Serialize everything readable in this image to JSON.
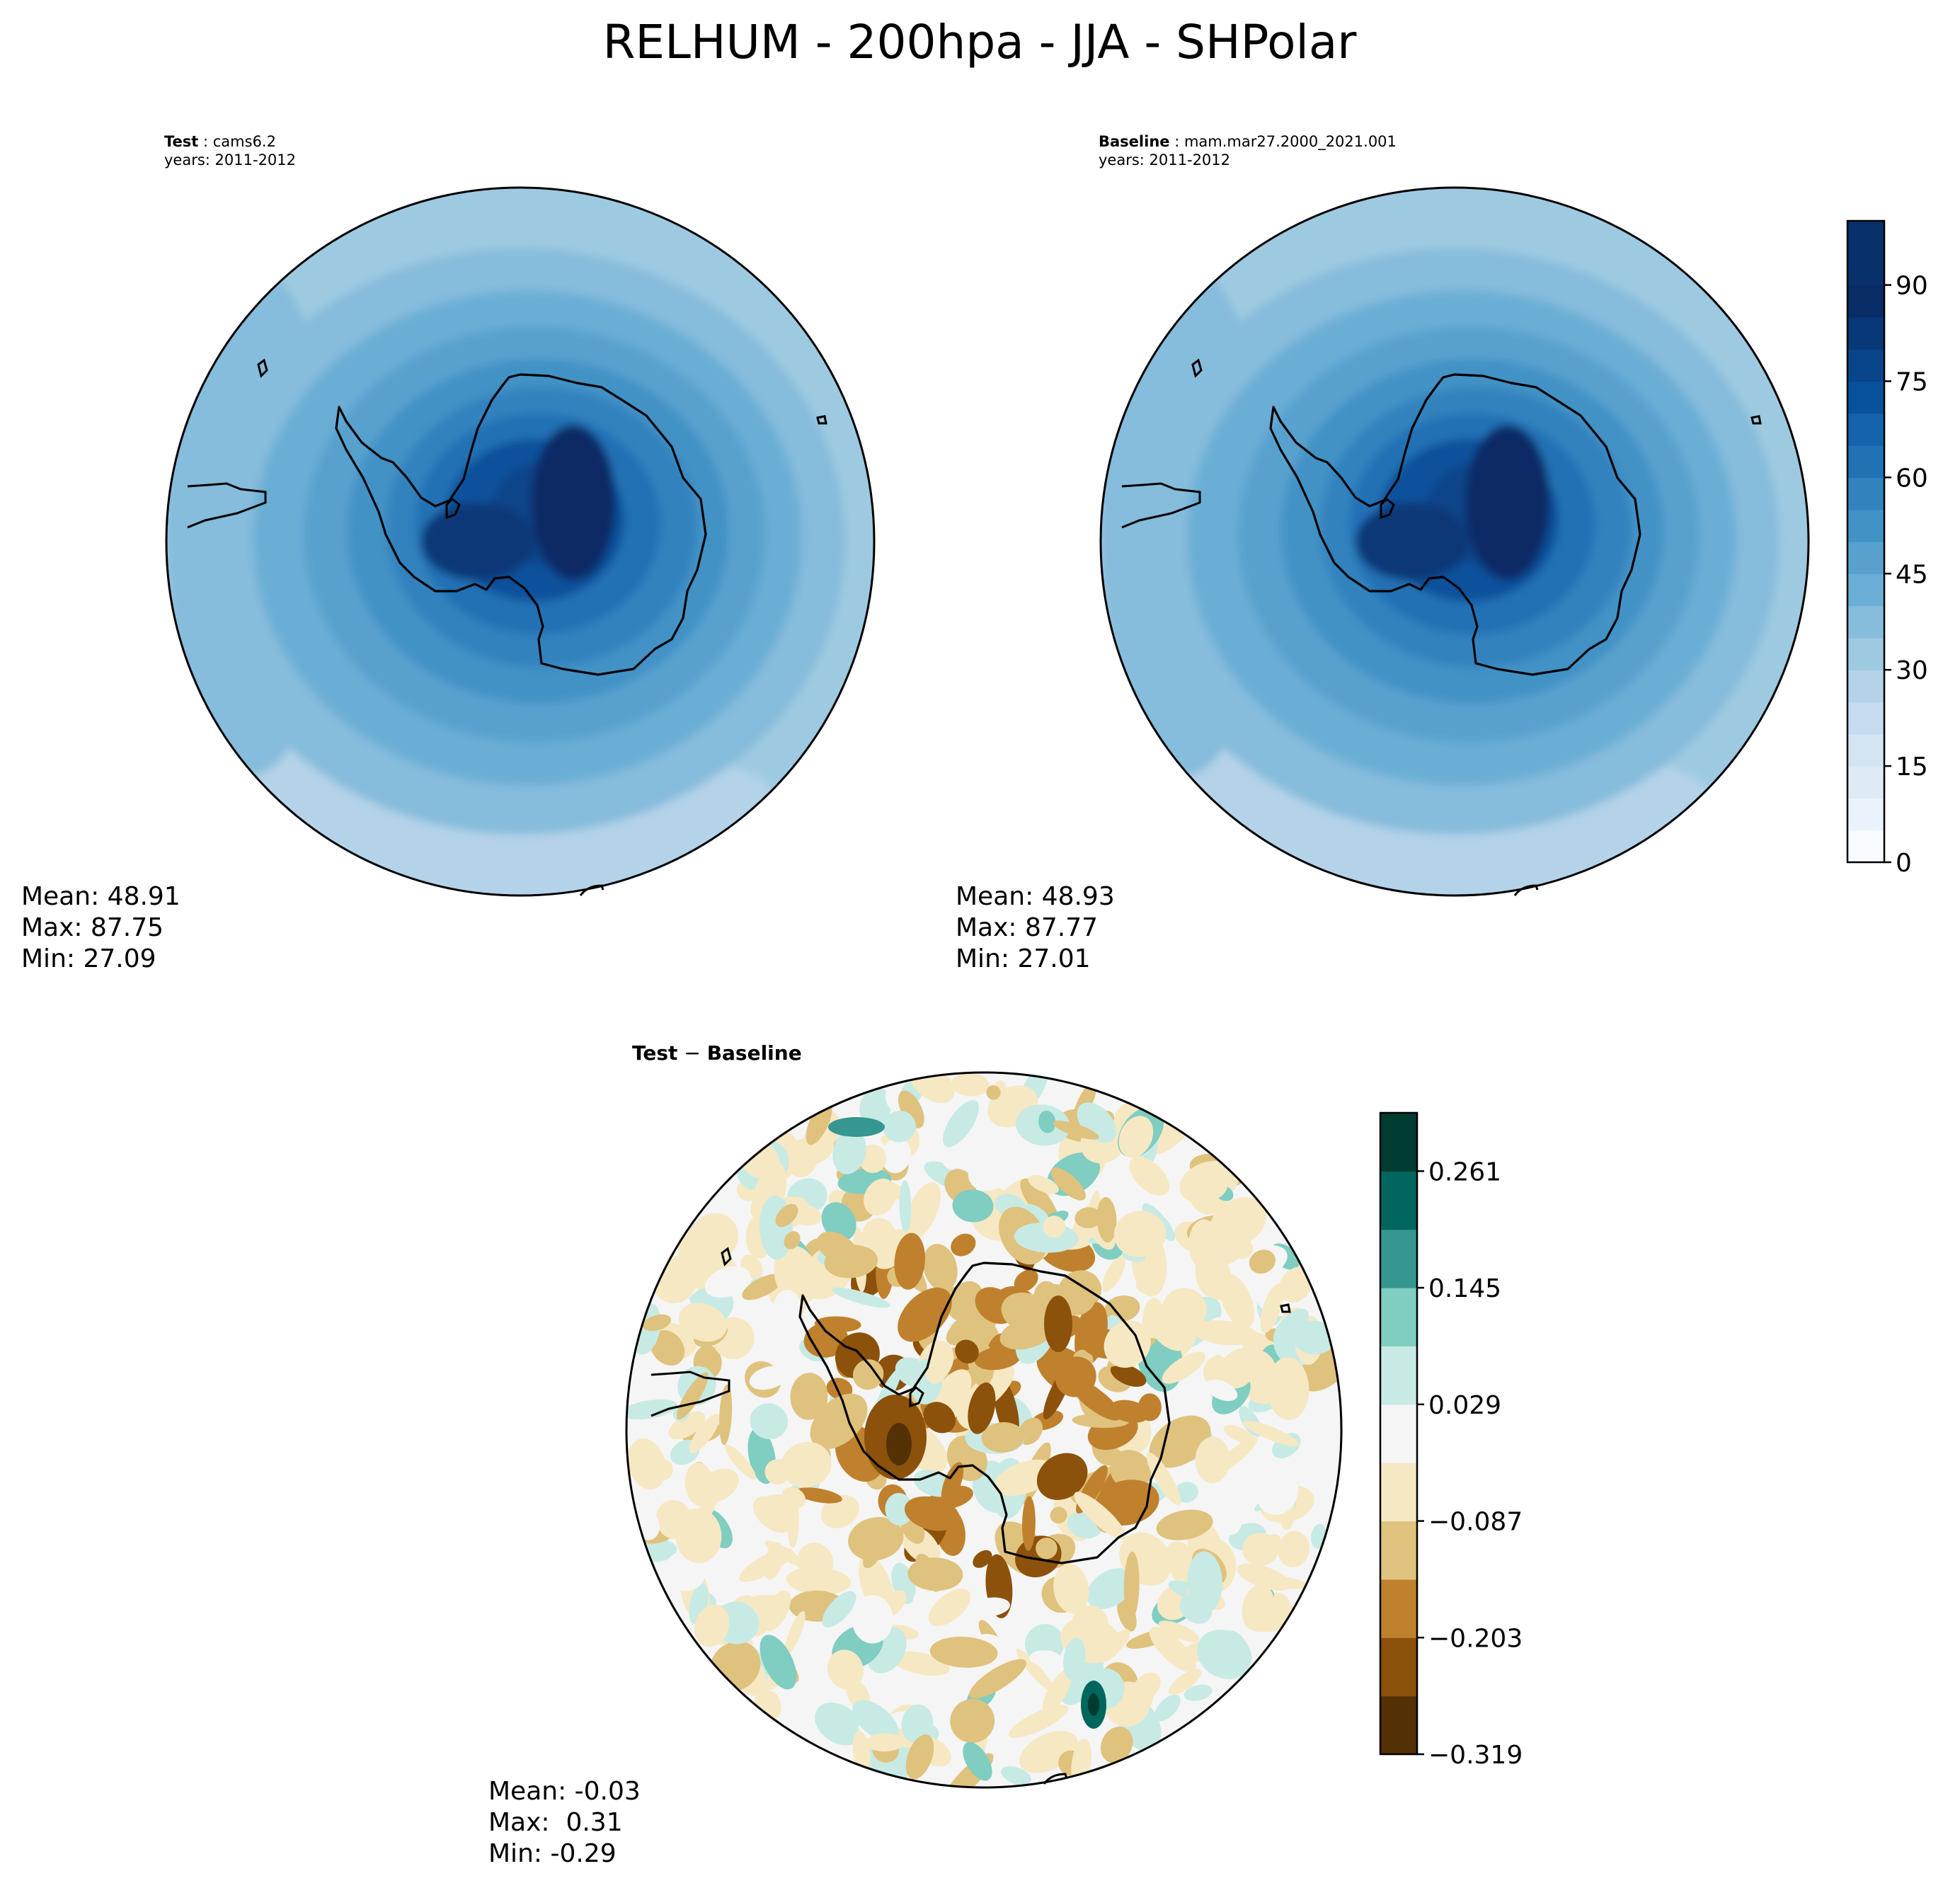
{
  "figure": {
    "title": "RELHUM - 200hpa - JJA - SHPolar"
  },
  "chart_data": [
    {
      "type": "heatmap",
      "projection": "south-polar-stereographic",
      "panel": "test",
      "label_bold": "Test",
      "label_rest": " : cams6.2",
      "years": "years: 2011-2012",
      "stats": [
        "Mean: 48.91",
        "Max: 87.75",
        "Min: 27.09"
      ],
      "field_levels": [
        78,
        70,
        62,
        56,
        50,
        46,
        42,
        38
      ]
    },
    {
      "type": "heatmap",
      "projection": "south-polar-stereographic",
      "panel": "baseline",
      "label_bold": "Baseline",
      "label_rest": " : mam.mar27.2000_2021.001",
      "years": "years: 2011-2012",
      "stats": [
        "Mean: 48.93",
        "Max: 87.77",
        "Min: 27.01"
      ],
      "field_levels": [
        78,
        70,
        62,
        56,
        50,
        46,
        42,
        38
      ],
      "colorbar": {
        "range": [
          0,
          100
        ],
        "levels": 20,
        "ticks": [
          0,
          15,
          30,
          45,
          60,
          75,
          90
        ],
        "colors": [
          "#f7fbff",
          "#eaf3fb",
          "#deebf7",
          "#d3e4f3",
          "#c6dbef",
          "#b4d3e9",
          "#9ecae1",
          "#86bcdc",
          "#6baed6",
          "#58a1cf",
          "#4292c6",
          "#3282be",
          "#2171b5",
          "#1563aa",
          "#08519c",
          "#08458a",
          "#083877",
          "#082c66",
          "#08306b",
          "#08306b"
        ]
      }
    },
    {
      "type": "heatmap",
      "projection": "south-polar-stereographic",
      "panel": "difference",
      "label_bold": "Test",
      "label_op": " − ",
      "label_bold2": "Baseline",
      "stats": [
        "Mean: -0.03",
        "Max:  0.31",
        "Min: -0.29"
      ],
      "colorbar": {
        "range": [
          -0.319,
          0.319
        ],
        "ticks": [
          "0.261",
          "0.145",
          "0.029",
          "−0.087",
          "−0.203",
          "−0.319"
        ],
        "tick_values": [
          0.261,
          0.145,
          0.029,
          -0.087,
          -0.203,
          -0.319
        ],
        "colors": [
          "#543005",
          "#8c510a",
          "#bf812d",
          "#dfc27d",
          "#f6e8c3",
          "#f5f5f5",
          "#c7eae5",
          "#80cdc1",
          "#35978f",
          "#01665e",
          "#003c30"
        ]
      }
    }
  ]
}
